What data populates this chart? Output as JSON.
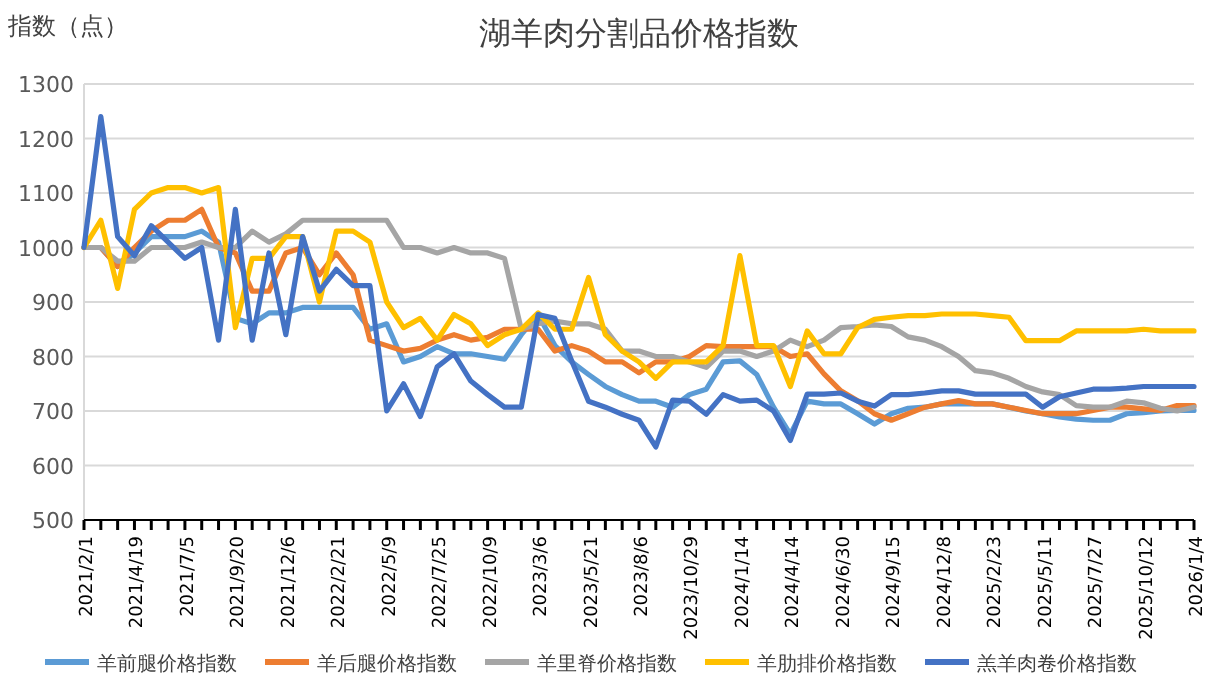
{
  "chart_data": {
    "type": "line",
    "title": "湖羊肉分割品价格指数",
    "ylabel": "指数（点）",
    "categories": [
      "2021/2/1",
      null,
      null,
      "2021/4/19",
      null,
      null,
      "2021/7/5",
      null,
      null,
      "2021/9/20",
      null,
      null,
      "2021/12/6",
      null,
      null,
      "2022/2/21",
      null,
      null,
      "2022/5/9",
      null,
      null,
      "2022/7/25",
      null,
      null,
      "2022/10/9",
      null,
      null,
      "2023/3/6",
      null,
      null,
      "2023/5/21",
      null,
      null,
      "2023/8/6",
      null,
      null,
      "2023/10/29",
      null,
      null,
      "2024/1/14",
      null,
      null,
      "2024/4/14",
      null,
      null,
      "2024/6/30",
      null,
      null,
      "2024/9/15",
      null,
      null,
      "2024/12/8",
      null,
      null,
      "2025/2/23",
      null,
      null,
      "2025/5/11",
      null,
      null,
      "2025/7/27",
      null,
      null,
      "2025/10/12",
      null,
      null,
      "2026/1/4"
    ],
    "ylim": [
      500,
      1300
    ],
    "yticks": [
      500,
      600,
      700,
      800,
      900,
      1000,
      1100,
      1200,
      1300
    ],
    "grid": "y",
    "legend": "bottom",
    "marker": "none",
    "line_style": "solid",
    "series": [
      {
        "name": "羊前腿价格指数",
        "color": "#5b9bd5",
        "values": [
          1000,
          1000,
          965,
          990,
          1020,
          1020,
          1020,
          1030,
          1010,
          870,
          860,
          880,
          880,
          890,
          890,
          890,
          890,
          850,
          860,
          790,
          800,
          818,
          805,
          805,
          800,
          795,
          840,
          877,
          820,
          790,
          767,
          745,
          730,
          718,
          718,
          707,
          730,
          740,
          790,
          792,
          767,
          707,
          657,
          718,
          713,
          713,
          695,
          676,
          695,
          705,
          707,
          713,
          713,
          713,
          713,
          707,
          700,
          695,
          689,
          685,
          683,
          683,
          695,
          697,
          700,
          701,
          701
        ]
      },
      {
        "name": "羊后腿价格指数",
        "color": "#ed7d31",
        "values": [
          1000,
          1000,
          965,
          1000,
          1030,
          1050,
          1050,
          1070,
          1000,
          990,
          920,
          920,
          990,
          1000,
          950,
          990,
          950,
          830,
          820,
          810,
          815,
          830,
          840,
          830,
          835,
          850,
          850,
          850,
          810,
          820,
          810,
          790,
          790,
          770,
          790,
          790,
          800,
          820,
          818,
          818,
          818,
          818,
          800,
          805,
          768,
          737,
          719,
          695,
          683,
          695,
          707,
          713,
          719,
          713,
          713,
          707,
          701,
          695,
          695,
          695,
          701,
          707,
          707,
          704,
          701,
          710,
          710
        ]
      },
      {
        "name": "羊里脊价格指数",
        "color": "#a5a5a5",
        "values": [
          1000,
          1000,
          975,
          975,
          1000,
          1000,
          1000,
          1010,
          1000,
          1000,
          1030,
          1010,
          1025,
          1050,
          1050,
          1050,
          1050,
          1050,
          1050,
          1000,
          1000,
          990,
          1000,
          990,
          990,
          980,
          850,
          860,
          865,
          860,
          860,
          850,
          810,
          810,
          800,
          800,
          790,
          780,
          810,
          810,
          800,
          810,
          830,
          818,
          830,
          853,
          855,
          858,
          855,
          836,
          830,
          818,
          800,
          774,
          770,
          760,
          745,
          735,
          730,
          710,
          707,
          707,
          718,
          715,
          705,
          700,
          707
        ]
      },
      {
        "name": "羊肋排价格指数",
        "color": "#ffc000",
        "values": [
          1000,
          1050,
          925,
          1070,
          1100,
          1110,
          1110,
          1100,
          1110,
          853,
          980,
          980,
          1020,
          1020,
          900,
          1030,
          1030,
          1010,
          900,
          853,
          870,
          830,
          877,
          860,
          820,
          840,
          850,
          880,
          850,
          850,
          945,
          840,
          810,
          790,
          760,
          790,
          790,
          790,
          820,
          985,
          820,
          820,
          745,
          847,
          805,
          805,
          853,
          868,
          872,
          875,
          875,
          878,
          878,
          878,
          875,
          872,
          829,
          829,
          829,
          847,
          847,
          847,
          847,
          850,
          847,
          847,
          847
        ]
      },
      {
        "name": "羔羊肉卷价格指数",
        "color": "#4472c4",
        "values": [
          1000,
          1240,
          1020,
          985,
          1040,
          1010,
          980,
          1000,
          830,
          1070,
          830,
          990,
          840,
          1020,
          920,
          960,
          930,
          930,
          700,
          750,
          690,
          781,
          805,
          755,
          730,
          707,
          707,
          877,
          870,
          792,
          718,
          707,
          694,
          683,
          634,
          720,
          718,
          694,
          730,
          718,
          720,
          700,
          646,
          731,
          731,
          733,
          718,
          709,
          730,
          730,
          733,
          737,
          737,
          731,
          731,
          731,
          731,
          707,
          726,
          733,
          740,
          740,
          742,
          745,
          745,
          745,
          745
        ]
      }
    ]
  }
}
